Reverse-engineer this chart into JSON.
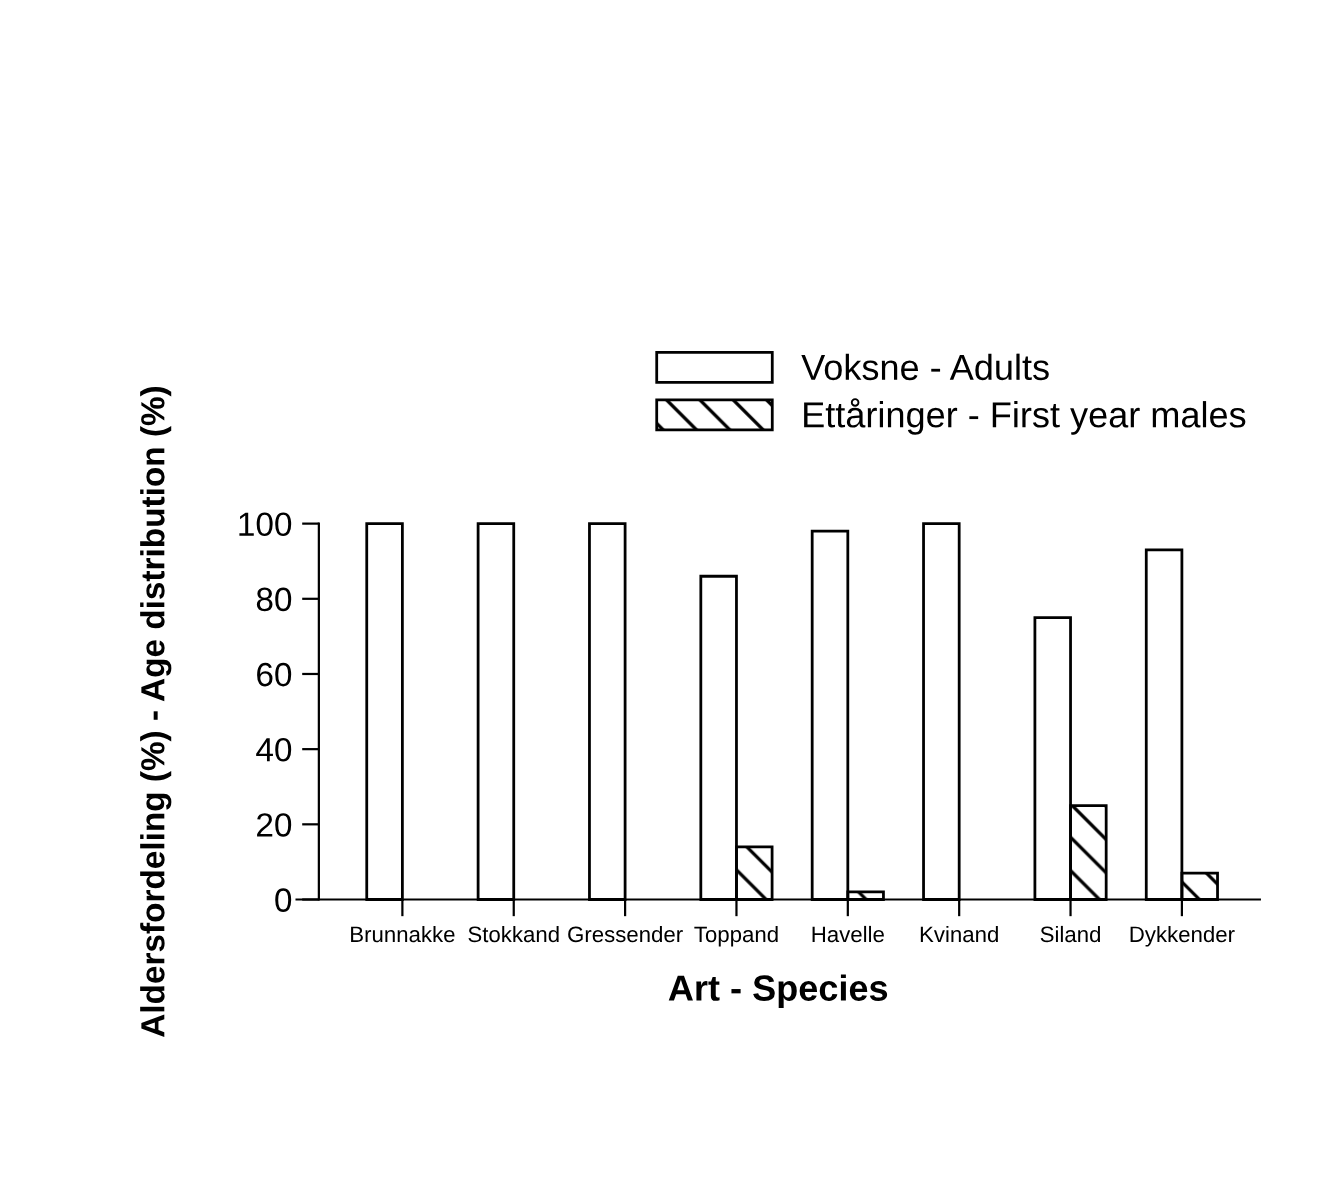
{
  "chart_data": {
    "type": "bar",
    "xlabel": "Art - Species",
    "ylabel": "Aldersfordeling (%) - Age distribution (%)",
    "categories": [
      "Brunnakke",
      "Stokkand",
      "Gressender",
      "Toppand",
      "Havelle",
      "Kvinand",
      "Siland",
      "Dykkender"
    ],
    "series": [
      {
        "name": "Voksne - Adults",
        "color": "#ffffff",
        "values": [
          100,
          100,
          100,
          86,
          98,
          100,
          75,
          93
        ]
      },
      {
        "name": "Ettåringer - First year males",
        "color": "#000000",
        "values": [
          0,
          0,
          0,
          14,
          2,
          0,
          25,
          7
        ]
      }
    ],
    "ylim": [
      0,
      100
    ],
    "yticks": [
      0,
      20,
      40,
      60,
      80,
      100
    ],
    "grid": false,
    "legend": "top right"
  }
}
